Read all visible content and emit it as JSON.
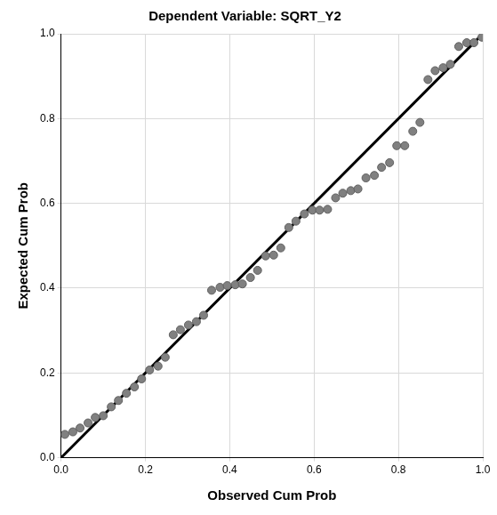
{
  "chart_data": {
    "type": "scatter",
    "title": "Dependent Variable: SQRT_Y2",
    "x_label": "Observed Cum Prob",
    "y_label": "Expected Cum Prob",
    "x": [
      0.009,
      0.028,
      0.045,
      0.064,
      0.081,
      0.1,
      0.119,
      0.136,
      0.155,
      0.174,
      0.191,
      0.21,
      0.23,
      0.247,
      0.266,
      0.283,
      0.302,
      0.321,
      0.338,
      0.357,
      0.377,
      0.394,
      0.413,
      0.43,
      0.449,
      0.466,
      0.485,
      0.504,
      0.521,
      0.54,
      0.557,
      0.577,
      0.596,
      0.613,
      0.632,
      0.651,
      0.668,
      0.687,
      0.704,
      0.723,
      0.743,
      0.76,
      0.779,
      0.796,
      0.815,
      0.834,
      0.851,
      0.87,
      0.887,
      0.906,
      0.923,
      0.943,
      0.962,
      0.979,
      0.998
    ],
    "values": [
      0.055,
      0.061,
      0.07,
      0.082,
      0.095,
      0.099,
      0.12,
      0.135,
      0.152,
      0.167,
      0.186,
      0.207,
      0.216,
      0.237,
      0.29,
      0.302,
      0.313,
      0.321,
      0.336,
      0.395,
      0.402,
      0.406,
      0.408,
      0.41,
      0.425,
      0.442,
      0.476,
      0.478,
      0.495,
      0.543,
      0.558,
      0.575,
      0.584,
      0.584,
      0.586,
      0.613,
      0.624,
      0.63,
      0.634,
      0.66,
      0.666,
      0.685,
      0.696,
      0.736,
      0.736,
      0.77,
      0.791,
      0.892,
      0.913,
      0.92,
      0.928,
      0.97,
      0.979,
      0.979,
      0.992
    ],
    "color": "#808080",
    "marker": "circle",
    "reference_line": {
      "x": [
        0,
        1
      ],
      "values": [
        0,
        1
      ],
      "color": "#000000",
      "line_style": "solid"
    },
    "xlim": [
      0,
      1
    ],
    "ylim": [
      0,
      1
    ],
    "xticks": [
      {
        "value": 0,
        "label": "0.0"
      },
      0.2,
      0.4,
      0.6,
      0.8,
      {
        "value": 1,
        "label": "1.0"
      }
    ],
    "yticks": [
      {
        "value": 0,
        "label": "0.0"
      },
      0.2,
      0.4,
      0.6,
      0.8,
      {
        "value": 1,
        "label": "1.0"
      }
    ],
    "grid": true
  }
}
